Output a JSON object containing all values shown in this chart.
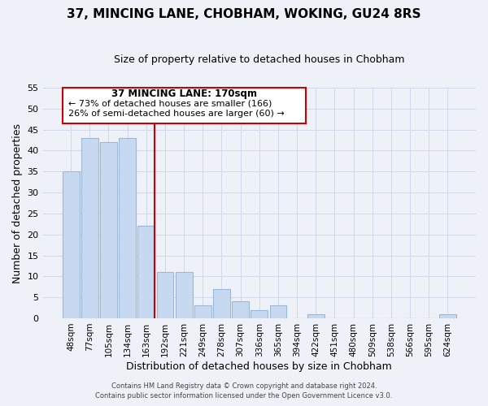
{
  "title": "37, MINCING LANE, CHOBHAM, WOKING, GU24 8RS",
  "subtitle": "Size of property relative to detached houses in Chobham",
  "xlabel": "Distribution of detached houses by size in Chobham",
  "ylabel": "Number of detached properties",
  "footnote1": "Contains HM Land Registry data © Crown copyright and database right 2024.",
  "footnote2": "Contains public sector information licensed under the Open Government Licence v3.0.",
  "bar_labels": [
    "48sqm",
    "77sqm",
    "105sqm",
    "134sqm",
    "163sqm",
    "192sqm",
    "221sqm",
    "249sqm",
    "278sqm",
    "307sqm",
    "336sqm",
    "365sqm",
    "394sqm",
    "422sqm",
    "451sqm",
    "480sqm",
    "509sqm",
    "538sqm",
    "566sqm",
    "595sqm",
    "624sqm"
  ],
  "bar_heights": [
    35,
    43,
    42,
    43,
    22,
    11,
    11,
    3,
    7,
    4,
    2,
    3,
    0,
    1,
    0,
    0,
    0,
    0,
    0,
    0,
    1
  ],
  "bar_color": "#c6d9f0",
  "bar_edge_color": "#9ab8d8",
  "vline_color": "#cc0000",
  "ylim": [
    0,
    55
  ],
  "yticks": [
    0,
    5,
    10,
    15,
    20,
    25,
    30,
    35,
    40,
    45,
    50,
    55
  ],
  "annotation_title": "37 MINCING LANE: 170sqm",
  "annotation_line1": "← 73% of detached houses are smaller (166)",
  "annotation_line2": "26% of semi-detached houses are larger (60) →",
  "annotation_box_color": "#ffffff",
  "annotation_box_edge": "#cc0000",
  "grid_color": "#d0daea",
  "bg_color": "#eef2f8",
  "title_fontsize": 11,
  "subtitle_fontsize": 9
}
